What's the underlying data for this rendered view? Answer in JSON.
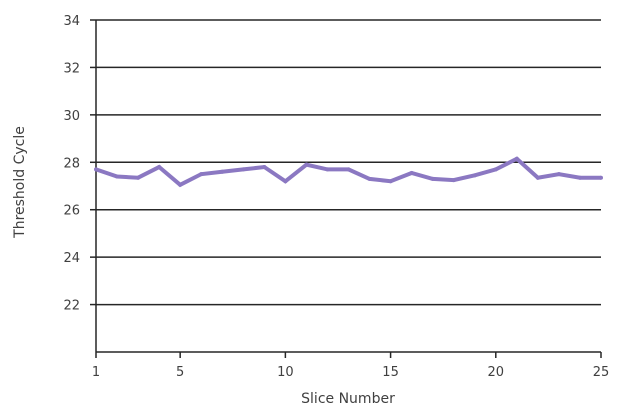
{
  "chart_data": {
    "type": "line",
    "xlabel": "Slice Number",
    "ylabel": "Threshold Cycle",
    "xlim": [
      1,
      25
    ],
    "ylim": [
      20,
      34
    ],
    "x_ticks": [
      "1",
      "5",
      "10",
      "15",
      "20",
      "25"
    ],
    "y_ticks": [
      "22",
      "24",
      "26",
      "28",
      "30",
      "32",
      "34"
    ],
    "grid": "horizontal",
    "line_color": "#8b78c2",
    "grid_color": "#262626",
    "x": [
      1,
      2,
      3,
      4,
      5,
      6,
      7,
      8,
      9,
      10,
      11,
      12,
      13,
      14,
      15,
      16,
      17,
      18,
      19,
      20,
      21,
      22,
      23,
      24,
      25
    ],
    "series": [
      {
        "values": [
          27.7,
          27.4,
          27.35,
          27.8,
          27.05,
          27.5,
          27.6,
          27.7,
          27.8,
          27.2,
          27.9,
          27.7,
          27.7,
          27.3,
          27.2,
          27.55,
          27.3,
          27.25,
          27.45,
          27.7,
          28.15,
          27.35,
          27.5,
          27.35,
          27.35
        ]
      }
    ]
  }
}
